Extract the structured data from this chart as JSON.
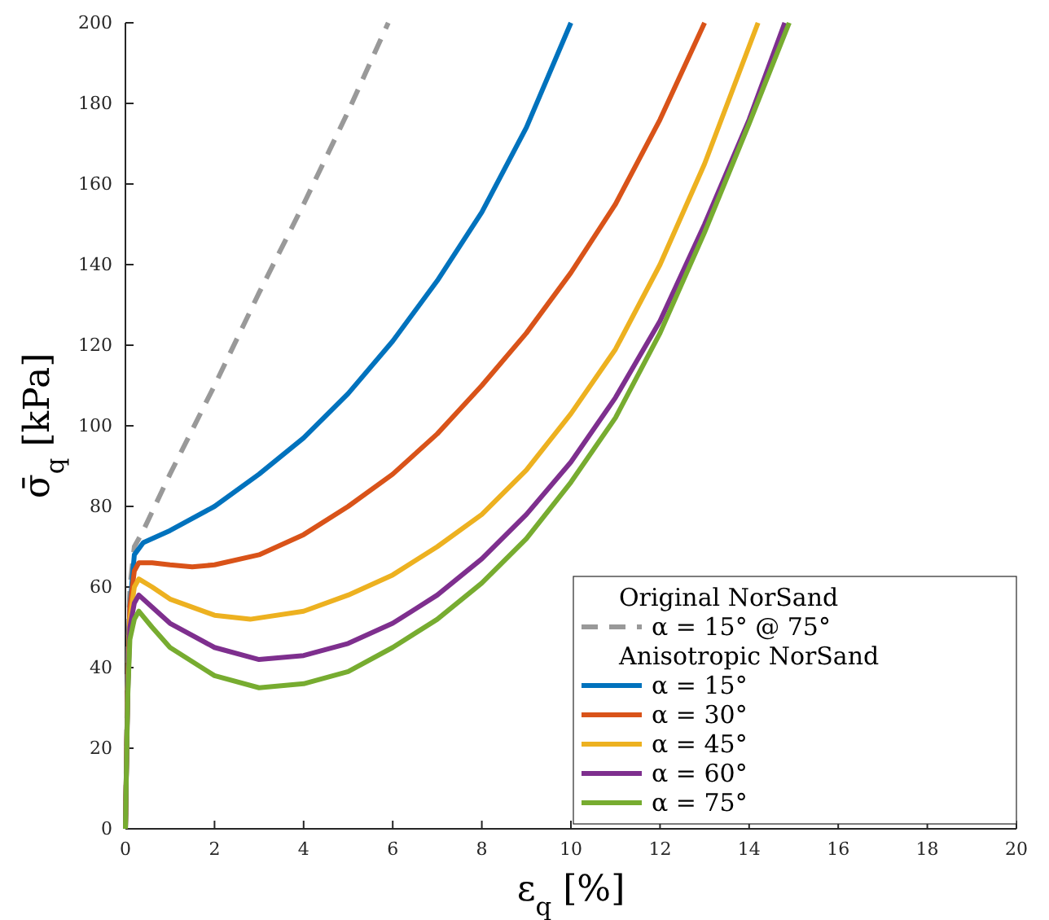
{
  "chart_data": {
    "type": "line",
    "xlabel": "ε$_{q}$ [%]",
    "ylabel": "σ̄$_{q}$ [kPa]",
    "xlim": [
      0,
      20
    ],
    "ylim": [
      0,
      200
    ],
    "xticks": [
      0,
      2,
      4,
      6,
      8,
      10,
      12,
      14,
      16,
      18,
      20
    ],
    "yticks": [
      0,
      20,
      40,
      60,
      80,
      100,
      120,
      140,
      160,
      180,
      200
    ],
    "grid": false,
    "legend": "bottom right",
    "legend_title": "Original NorSand",
    "annotations": [
      "Anisotropic NorSand"
    ],
    "marker": "none",
    "series": [
      {
        "name": "α = 15° @ 75°",
        "color": "#999999",
        "line_style": "dashed",
        "x": [
          0,
          0.05,
          0.1,
          0.2,
          0.4,
          1,
          2,
          3,
          4,
          5,
          5.9
        ],
        "values": [
          0,
          40,
          60,
          70,
          74,
          88,
          110,
          133,
          155,
          178,
          200
        ]
      },
      {
        "name": "α = 15°",
        "color": "#0072bd",
        "line_style": "solid",
        "x": [
          0,
          0.05,
          0.1,
          0.2,
          0.4,
          1,
          2,
          3,
          4,
          5,
          6,
          7,
          8,
          9,
          10
        ],
        "values": [
          0,
          35,
          55,
          68,
          71,
          74,
          80,
          88,
          97,
          108,
          121,
          136,
          153,
          174,
          200
        ]
      },
      {
        "name": "α = 30°",
        "color": "#d95319",
        "line_style": "solid",
        "x": [
          0,
          0.05,
          0.1,
          0.2,
          0.3,
          0.6,
          1,
          1.5,
          2,
          3,
          4,
          5,
          6,
          7,
          8,
          9,
          10,
          11,
          12,
          13
        ],
        "values": [
          0,
          35,
          55,
          64,
          66,
          66,
          65.5,
          65,
          65.5,
          68,
          73,
          80,
          88,
          98,
          110,
          123,
          138,
          155,
          176,
          200
        ]
      },
      {
        "name": "α = 45°",
        "color": "#edb120",
        "line_style": "solid",
        "x": [
          0,
          0.05,
          0.1,
          0.2,
          0.3,
          0.6,
          1,
          2,
          2.8,
          4,
          5,
          6,
          7,
          8,
          9,
          10,
          11,
          12,
          13,
          14.2
        ],
        "values": [
          0,
          35,
          52,
          60,
          62,
          60,
          57,
          53,
          52,
          54,
          58,
          63,
          70,
          78,
          89,
          103,
          119,
          140,
          165,
          200
        ]
      },
      {
        "name": "α = 60°",
        "color": "#7e2f8e",
        "line_style": "solid",
        "x": [
          0,
          0.05,
          0.1,
          0.2,
          0.3,
          0.6,
          1,
          2,
          3,
          4,
          5,
          6,
          7,
          8,
          9,
          10,
          11,
          12,
          13,
          14,
          14.8
        ],
        "values": [
          0,
          33,
          50,
          56,
          58,
          55,
          51,
          45,
          42,
          43,
          46,
          51,
          58,
          67,
          78,
          91,
          107,
          126,
          150,
          176,
          200
        ]
      },
      {
        "name": "α = 75°",
        "color": "#77ac30",
        "line_style": "solid",
        "x": [
          0,
          0.05,
          0.1,
          0.2,
          0.3,
          0.6,
          1,
          2,
          3,
          4,
          5,
          6,
          7,
          8,
          9,
          10,
          11,
          12,
          13,
          14,
          14.9
        ],
        "values": [
          0,
          32,
          47,
          52,
          54,
          50,
          45,
          38,
          35,
          36,
          39,
          45,
          52,
          61,
          72,
          86,
          102,
          123,
          148,
          175,
          200
        ]
      }
    ]
  }
}
